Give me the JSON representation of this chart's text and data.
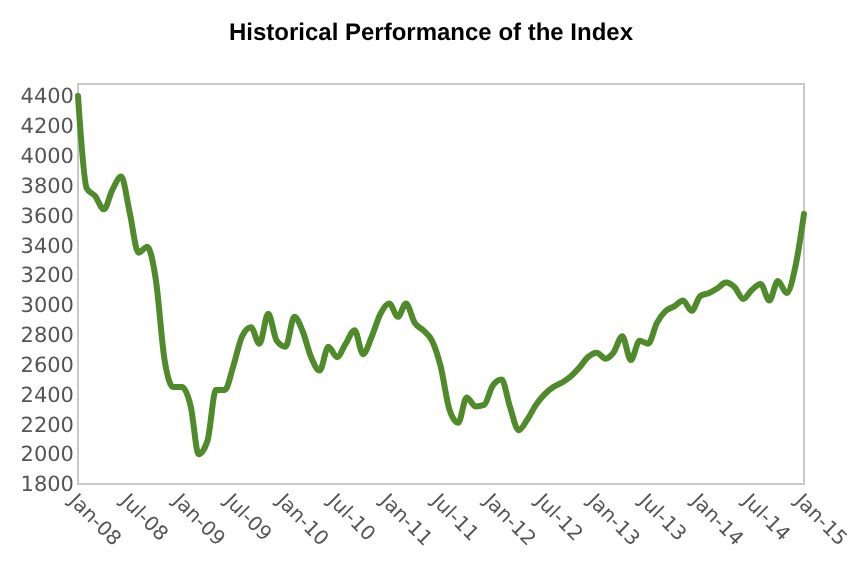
{
  "chart_data": {
    "type": "line",
    "title": "Historical Performance of the Index",
    "x": [
      "2008-01",
      "2008-02",
      "2008-03",
      "2008-04",
      "2008-05",
      "2008-06",
      "2008-07",
      "2008-08",
      "2008-09",
      "2008-10",
      "2008-11",
      "2008-12",
      "2009-01",
      "2009-02",
      "2009-03",
      "2009-04",
      "2009-05",
      "2009-06",
      "2009-07",
      "2009-08",
      "2009-09",
      "2009-10",
      "2009-11",
      "2009-12",
      "2010-01",
      "2010-02",
      "2010-03",
      "2010-04",
      "2010-05",
      "2010-06",
      "2010-07",
      "2010-08",
      "2010-09",
      "2010-10",
      "2010-11",
      "2010-12",
      "2011-01",
      "2011-02",
      "2011-03",
      "2011-04",
      "2011-05",
      "2011-06",
      "2011-07",
      "2011-08",
      "2011-09",
      "2011-10",
      "2011-11",
      "2011-12",
      "2012-01",
      "2012-02",
      "2012-03",
      "2012-04",
      "2012-05",
      "2012-06",
      "2012-07",
      "2012-08",
      "2012-09",
      "2012-10",
      "2012-11",
      "2012-12",
      "2013-01",
      "2013-02",
      "2013-03",
      "2013-04",
      "2013-05",
      "2013-06",
      "2013-07",
      "2013-08",
      "2013-09",
      "2013-10",
      "2013-11",
      "2013-12",
      "2014-01",
      "2014-02",
      "2014-03",
      "2014-04",
      "2014-05",
      "2014-06",
      "2014-07",
      "2014-08",
      "2014-09",
      "2014-10",
      "2014-11",
      "2014-12",
      "2015-01"
    ],
    "series": [
      {
        "color": "#4f8a2b",
        "values": [
          4400,
          3780,
          3730,
          3640,
          3770,
          3860,
          3620,
          3350,
          3390,
          3170,
          2630,
          2450,
          2450,
          2320,
          2000,
          2090,
          2430,
          2430,
          2590,
          2790,
          2850,
          2740,
          2940,
          2760,
          2720,
          2920,
          2830,
          2650,
          2560,
          2720,
          2650,
          2740,
          2830,
          2670,
          2790,
          2940,
          3010,
          2920,
          3010,
          2880,
          2830,
          2760,
          2590,
          2300,
          2210,
          2380,
          2320,
          2330,
          2460,
          2500,
          2320,
          2160,
          2230,
          2330,
          2400,
          2450,
          2480,
          2520,
          2580,
          2650,
          2680,
          2640,
          2680,
          2790,
          2630,
          2760,
          2740,
          2880,
          2960,
          2990,
          3030,
          2960,
          3060,
          3080,
          3110,
          3150,
          3120,
          3040,
          3100,
          3140,
          3030,
          3160,
          3080,
          3250,
          3610
        ]
      }
    ],
    "xlim": [
      "2008-01",
      "2015-01"
    ],
    "xticks": [
      {
        "value": "2008-01",
        "label": "Jan-08"
      },
      {
        "value": "2008-07",
        "label": "Jul-08"
      },
      {
        "value": "2009-01",
        "label": "Jan-09"
      },
      {
        "value": "2009-07",
        "label": "Jul-09"
      },
      {
        "value": "2010-01",
        "label": "Jan-10"
      },
      {
        "value": "2010-07",
        "label": "Jul-10"
      },
      {
        "value": "2011-01",
        "label": "Jan-11"
      },
      {
        "value": "2011-07",
        "label": "Jul-11"
      },
      {
        "value": "2012-01",
        "label": "Jan-12"
      },
      {
        "value": "2012-07",
        "label": "Jul-12"
      },
      {
        "value": "2013-01",
        "label": "Jan-13"
      },
      {
        "value": "2013-07",
        "label": "Jul-13"
      },
      {
        "value": "2014-01",
        "label": "Jan-14"
      },
      {
        "value": "2014-07",
        "label": "Jul-14"
      },
      {
        "value": "2015-01",
        "label": "Jan-15"
      }
    ],
    "ylim": [
      1800,
      4480
    ],
    "yticks": [
      1800,
      2000,
      2200,
      2400,
      2600,
      2800,
      3000,
      3200,
      3400,
      3600,
      3800,
      4000,
      4200,
      4400
    ],
    "grid": false,
    "line_style": "solid"
  }
}
